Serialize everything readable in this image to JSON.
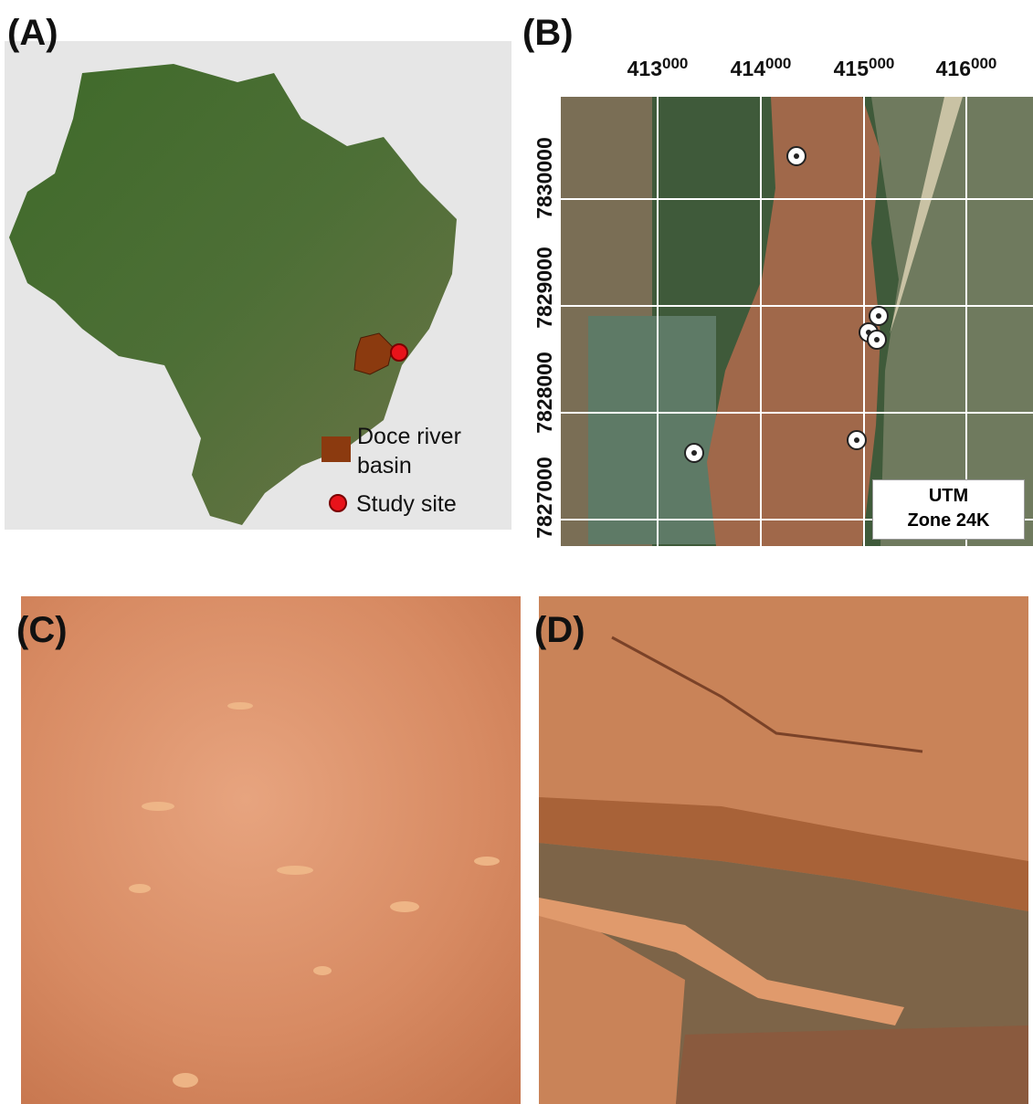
{
  "panels": [
    {
      "label": "(A)",
      "legend": [
        {
          "label": "Doce river basin"
        },
        {
          "label": "Study site"
        }
      ]
    },
    {
      "label": "(B)",
      "x_ticks": [
        {
          "main": "413",
          "sup": "000"
        },
        {
          "main": "414",
          "sup": "000"
        },
        {
          "main": "415",
          "sup": "000"
        },
        {
          "main": "416",
          "sup": "000"
        }
      ],
      "y_ticks": [
        "7830000",
        "7829000",
        "7828000",
        "7827000"
      ],
      "utm_box": [
        "UTM",
        "Zone 24K"
      ]
    },
    {
      "label": "(C)"
    },
    {
      "label": "(D)"
    }
  ]
}
